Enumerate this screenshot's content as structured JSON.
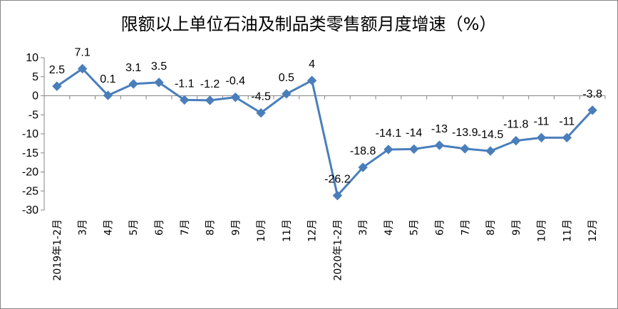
{
  "chart_data": {
    "type": "line",
    "title": "限额以上单位石油及制品类零售额月度增速（%）",
    "xlabel": "",
    "ylabel": "",
    "ylim": [
      -30,
      10
    ],
    "yticks": [
      10,
      5,
      0,
      -5,
      -10,
      -15,
      -20,
      -25,
      -30
    ],
    "grid": false,
    "legend": "none",
    "categories": [
      "2019年1-2月",
      "3月",
      "4月",
      "5月",
      "6月",
      "7月",
      "8月",
      "9月",
      "10月",
      "11月",
      "12月",
      "2020年1-2月",
      "3月",
      "4月",
      "5月",
      "6月",
      "7月",
      "8月",
      "9月",
      "10月",
      "11月",
      "12月"
    ],
    "series": [
      {
        "values": [
          2.5,
          7.1,
          0.1,
          3.1,
          3.5,
          -1.1,
          -1.2,
          -0.4,
          -4.5,
          0.5,
          4,
          -26.2,
          -18.8,
          -14.1,
          -14,
          -13,
          -13.9,
          -14.5,
          -11.8,
          -11,
          -11,
          -3.8
        ],
        "labels": [
          "2.5",
          "7.1",
          "0.1",
          "3.1",
          "3.5",
          "-1.1",
          "-1.2",
          "-0.4",
          "-4.5",
          "0.5",
          "4",
          "-26.2",
          "-18.8",
          "-14.1",
          "-14",
          "-13",
          "-13.9",
          "-14.5",
          "-11.8",
          "-11",
          "-11",
          "-3.8"
        ]
      }
    ],
    "colors": {
      "line": "#4A7EBB",
      "marker": "#4A7EBB",
      "axis": "#868686",
      "text": "#000000"
    }
  }
}
